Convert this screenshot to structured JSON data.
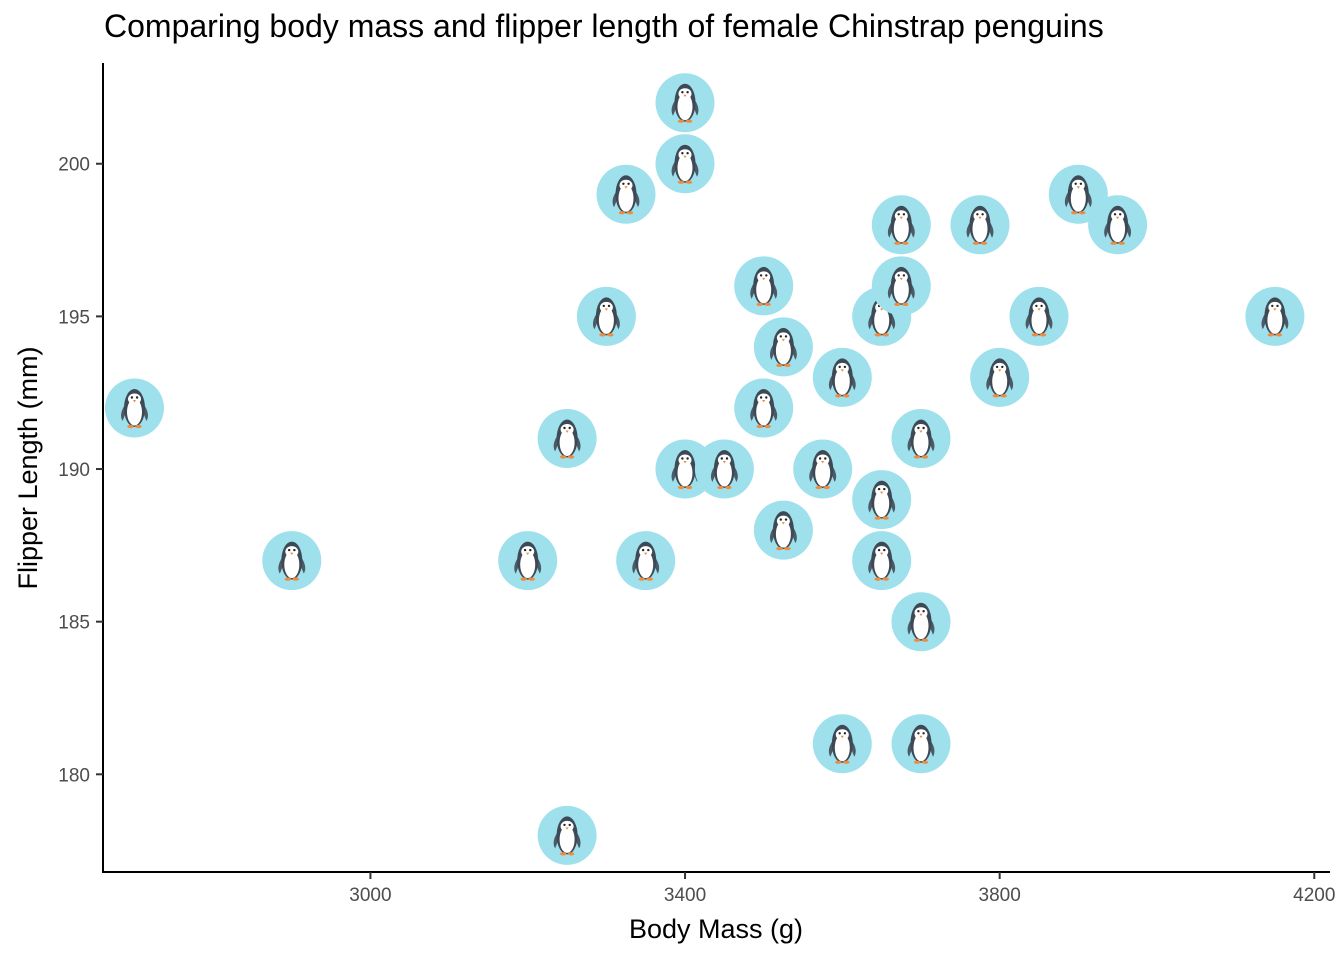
{
  "chart_data": {
    "type": "scatter",
    "title": "Comparing body mass and flipper length of female Chinstrap penguins",
    "xlabel": "Body Mass (g)",
    "ylabel": "Flipper Length (mm)",
    "xlim": [
      2660,
      4220
    ],
    "ylim": [
      176.8,
      203.3
    ],
    "xticks": [
      3000,
      3400,
      3800,
      4200
    ],
    "yticks": [
      180,
      185,
      190,
      195,
      200
    ],
    "grid": false,
    "marker": "penguin-icon",
    "marker_color": "#9ee0ec",
    "points": [
      {
        "x": 2700,
        "y": 192
      },
      {
        "x": 2900,
        "y": 187
      },
      {
        "x": 3200,
        "y": 187
      },
      {
        "x": 3250,
        "y": 191
      },
      {
        "x": 3250,
        "y": 178
      },
      {
        "x": 3300,
        "y": 195
      },
      {
        "x": 3325,
        "y": 199
      },
      {
        "x": 3350,
        "y": 187
      },
      {
        "x": 3400,
        "y": 202
      },
      {
        "x": 3400,
        "y": 200
      },
      {
        "x": 3400,
        "y": 190
      },
      {
        "x": 3450,
        "y": 190
      },
      {
        "x": 3500,
        "y": 196
      },
      {
        "x": 3500,
        "y": 192
      },
      {
        "x": 3525,
        "y": 194
      },
      {
        "x": 3525,
        "y": 188
      },
      {
        "x": 3575,
        "y": 190
      },
      {
        "x": 3600,
        "y": 193
      },
      {
        "x": 3600,
        "y": 181
      },
      {
        "x": 3650,
        "y": 195
      },
      {
        "x": 3650,
        "y": 189
      },
      {
        "x": 3650,
        "y": 187
      },
      {
        "x": 3675,
        "y": 198
      },
      {
        "x": 3675,
        "y": 196
      },
      {
        "x": 3700,
        "y": 191
      },
      {
        "x": 3700,
        "y": 185
      },
      {
        "x": 3700,
        "y": 181
      },
      {
        "x": 3775,
        "y": 198
      },
      {
        "x": 3800,
        "y": 193
      },
      {
        "x": 3850,
        "y": 195
      },
      {
        "x": 3900,
        "y": 199
      },
      {
        "x": 3950,
        "y": 198
      },
      {
        "x": 4150,
        "y": 195
      }
    ]
  }
}
